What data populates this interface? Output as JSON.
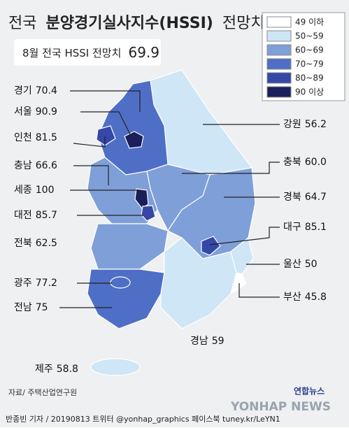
{
  "header": {
    "title_prefix": "전국",
    "title_main": "분양경기실사지수(HSSI)",
    "title_suffix": "전망치",
    "highlight_label": "8월 전국 HSSI 전망치",
    "highlight_value": 69.9
  },
  "legend": [
    {
      "label": "49 이하",
      "color": "#ffffff"
    },
    {
      "label": "50~59",
      "color": "#cfe6f7"
    },
    {
      "label": "60~69",
      "color": "#7f9fd8"
    },
    {
      "label": "70~79",
      "color": "#4f6fc6"
    },
    {
      "label": "80~89",
      "color": "#3548a8"
    },
    {
      "label": "90 이상",
      "color": "#1b1f5c"
    }
  ],
  "regions": [
    {
      "name": "경기",
      "value": 70.4,
      "color": "#4f6fc6"
    },
    {
      "name": "서울",
      "value": 90.9,
      "color": "#1b1f5c"
    },
    {
      "name": "인천",
      "value": 81.5,
      "color": "#3548a8"
    },
    {
      "name": "충남",
      "value": 66.6,
      "color": "#7f9fd8"
    },
    {
      "name": "세종",
      "value": 100,
      "color": "#1b1f5c"
    },
    {
      "name": "대전",
      "value": 85.7,
      "color": "#3548a8"
    },
    {
      "name": "전북",
      "value": 62.5,
      "color": "#7f9fd8"
    },
    {
      "name": "광주",
      "value": 77.2,
      "color": "#4f6fc6"
    },
    {
      "name": "전남",
      "value": 75,
      "color": "#4f6fc6"
    },
    {
      "name": "제주",
      "value": 58.8,
      "color": "#cfe6f7"
    },
    {
      "name": "강원",
      "value": 56.2,
      "color": "#cfe6f7"
    },
    {
      "name": "충북",
      "value": 60,
      "value_label": "60.0",
      "color": "#7f9fd8"
    },
    {
      "name": "경북",
      "value": 64.7,
      "color": "#7f9fd8"
    },
    {
      "name": "대구",
      "value": 85.1,
      "color": "#3548a8"
    },
    {
      "name": "울산",
      "value": 50,
      "color": "#cfe6f7"
    },
    {
      "name": "부산",
      "value": 45.8,
      "color": "#ffffff"
    },
    {
      "name": "경남",
      "value": 59,
      "color": "#cfe6f7"
    }
  ],
  "footer": {
    "source": "자료/ 주택산업연구원",
    "credit": "반종빈  기자 / 20190813  트위터 @yonhap_graphics  페이스북 tuney.kr/LeYN1",
    "logo": "연합뉴스",
    "watermark": "YONHAP NEWS"
  }
}
